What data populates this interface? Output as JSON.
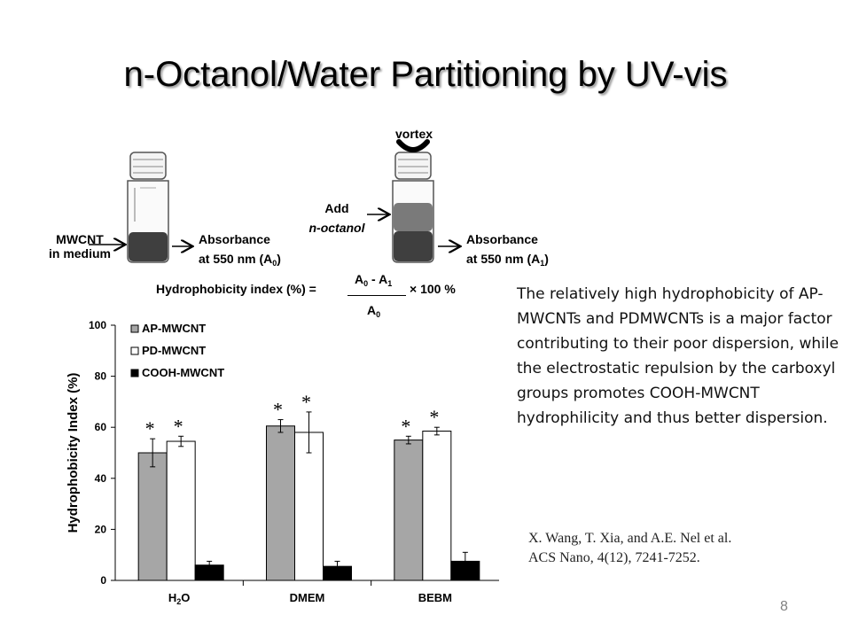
{
  "slide": {
    "title": "n-Octanol/Water Partitioning by UV-vis",
    "page_number": "8",
    "description": "The relatively high hydrophobicity of AP-MWCNTs and PDMWCNTs is a major factor contributing to their poor dispersion, while the electrostatic repulsion by the carboxyl groups promotes COOH-MWCNT hydrophilicity and thus better dispersion.",
    "citation_line1": "X. Wang, T. Xia, and A.E. Nel et al.",
    "citation_line2": "ACS Nano, 4(12), 7241-7252."
  },
  "schematic": {
    "vial1_label_line1": "MWCNT",
    "vial1_label_line2": "in medium",
    "vial1_result_line1": "Absorbance",
    "vial1_result_line2": "at 550 nm (A",
    "vial1_result_sub": "0",
    "add_label_line1": "Add",
    "add_label_line2": "n-octanol",
    "vortex_label": "vortex",
    "vial2_result_line1": "Absorbance",
    "vial2_result_line2": "at 550 nm (A",
    "vial2_result_sub": "1",
    "formula_label": "Hydrophobicity index (%) =",
    "formula_numerator": "A",
    "formula_numerator_sub0": "0",
    "formula_minus": "- A",
    "formula_numerator_sub1": "1",
    "formula_denominator": "A",
    "formula_denominator_sub": "0",
    "formula_suffix": "× 100 %",
    "medium_color": "#3f3f3f",
    "octanol_color": "#7a7a7a"
  },
  "chart_data": {
    "type": "bar",
    "categories": [
      "H2O",
      "DMEM",
      "BEBM"
    ],
    "ylabel": "Hydrophobicity Index (%)",
    "xlabel": "",
    "ylim": [
      0,
      100
    ],
    "yticks": [
      0,
      20,
      40,
      60,
      80,
      100
    ],
    "grid": false,
    "legend_position": "top-left",
    "series": [
      {
        "name": "AP-MWCNT",
        "color": "#a6a6a6",
        "values": [
          50,
          60.5,
          55
        ],
        "errors": [
          5.5,
          2.5,
          1.5
        ],
        "significant": [
          true,
          true,
          true
        ]
      },
      {
        "name": "PD-MWCNT",
        "color": "#ffffff",
        "values": [
          54.5,
          58,
          58.5
        ],
        "errors": [
          2,
          8,
          1.5
        ],
        "significant": [
          true,
          true,
          true
        ]
      },
      {
        "name": "COOH-MWCNT",
        "color": "#000000",
        "values": [
          6,
          5.5,
          7.5
        ],
        "errors": [
          1.5,
          2,
          3.5
        ],
        "significant": [
          false,
          false,
          false
        ]
      }
    ],
    "significance_marker": "*"
  }
}
